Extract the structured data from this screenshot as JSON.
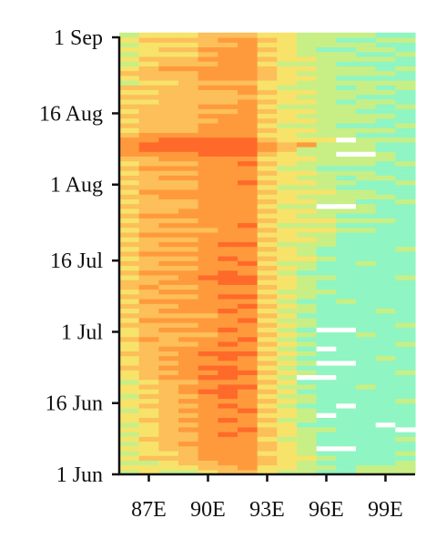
{
  "chart_data": {
    "type": "heatmap",
    "title": "",
    "xlabel": "",
    "ylabel": "",
    "x_ticks": [
      {
        "label": "87E",
        "value": 87
      },
      {
        "label": "90E",
        "value": 90
      },
      {
        "label": "93E",
        "value": 93
      },
      {
        "label": "96E",
        "value": 96
      },
      {
        "label": "99E",
        "value": 99
      }
    ],
    "y_ticks": [
      {
        "label": "1 Jun",
        "value": "2000-06-01"
      },
      {
        "label": "16 Jun",
        "value": "2000-06-16"
      },
      {
        "label": "1 Jul",
        "value": "2000-07-01"
      },
      {
        "label": "16 Jul",
        "value": "2000-07-16"
      },
      {
        "label": "1 Aug",
        "value": "2000-08-01"
      },
      {
        "label": "16 Aug",
        "value": "2000-08-16"
      },
      {
        "label": "1 Sep",
        "value": "2000-09-01"
      }
    ],
    "xlim": [
      85.5,
      100.5
    ],
    "ylim": [
      "2000-06-01",
      "2000-09-01"
    ],
    "grid": false,
    "legend": "none",
    "colormap": [
      "#8ff5c2",
      "#c7ef86",
      "#f7e36a",
      "#fcbf5a",
      "#ff9a3c",
      "#ff6a2a"
    ],
    "value_range": [
      0,
      5
    ],
    "missing_color": "#ffffff",
    "x_columns": [
      86,
      87,
      88,
      89,
      90,
      91,
      92,
      93,
      94,
      95,
      96,
      97,
      98,
      99,
      100
    ],
    "row_start_date": "2000-06-01",
    "row_step_days": 1,
    "rows": [
      [
        1,
        2,
        1,
        1,
        2,
        3,
        3,
        2,
        1,
        1,
        0,
        0,
        1,
        1,
        1
      ],
      [
        2,
        2,
        2,
        2,
        3,
        3,
        4,
        2,
        2,
        1,
        1,
        0,
        1,
        1,
        1
      ],
      [
        1,
        1,
        2,
        3,
        3,
        4,
        4,
        3,
        2,
        1,
        0,
        0,
        0,
        0,
        1
      ],
      [
        2,
        3,
        3,
        3,
        4,
        4,
        4,
        3,
        2,
        2,
        1,
        0,
        0,
        0,
        0
      ],
      [
        1,
        2,
        2,
        3,
        4,
        4,
        4,
        2,
        2,
        1,
        0,
        0,
        0,
        0,
        1
      ],
      [
        2,
        2,
        3,
        3,
        4,
        4,
        4,
        3,
        2,
        1,
        -1,
        -1,
        0,
        0,
        0
      ],
      [
        1,
        2,
        3,
        4,
        4,
        4,
        4,
        3,
        2,
        1,
        0,
        0,
        0,
        0,
        0
      ],
      [
        2,
        3,
        3,
        3,
        4,
        4,
        4,
        2,
        1,
        1,
        0,
        0,
        0,
        0,
        1
      ],
      [
        1,
        2,
        3,
        3,
        4,
        5,
        4,
        3,
        2,
        1,
        0,
        0,
        0,
        0,
        0
      ],
      [
        2,
        2,
        3,
        4,
        4,
        4,
        5,
        3,
        2,
        1,
        1,
        0,
        0,
        0,
        -1
      ],
      [
        1,
        2,
        3,
        3,
        4,
        4,
        4,
        2,
        2,
        0,
        0,
        0,
        0,
        -1,
        0
      ],
      [
        2,
        3,
        3,
        4,
        4,
        5,
        4,
        3,
        1,
        1,
        0,
        0,
        0,
        0,
        0
      ],
      [
        2,
        2,
        3,
        3,
        4,
        4,
        4,
        2,
        2,
        1,
        -1,
        0,
        0,
        0,
        0
      ],
      [
        1,
        2,
        3,
        4,
        4,
        4,
        5,
        3,
        2,
        1,
        0,
        0,
        0,
        0,
        0
      ],
      [
        2,
        3,
        3,
        3,
        4,
        5,
        4,
        2,
        1,
        0,
        0,
        -1,
        0,
        0,
        0
      ],
      [
        2,
        2,
        3,
        4,
        4,
        4,
        4,
        3,
        2,
        1,
        0,
        0,
        0,
        0,
        1
      ],
      [
        1,
        3,
        3,
        3,
        4,
        5,
        4,
        2,
        1,
        1,
        0,
        0,
        0,
        0,
        0
      ],
      [
        2,
        2,
        3,
        4,
        5,
        5,
        4,
        3,
        2,
        0,
        0,
        0,
        0,
        0,
        0
      ],
      [
        2,
        3,
        3,
        4,
        4,
        5,
        5,
        2,
        1,
        1,
        0,
        0,
        1,
        0,
        0
      ],
      [
        1,
        2,
        3,
        3,
        4,
        4,
        4,
        3,
        2,
        0,
        0,
        0,
        0,
        0,
        0
      ],
      [
        2,
        3,
        4,
        4,
        5,
        5,
        4,
        2,
        1,
        -1,
        -1,
        0,
        0,
        0,
        0
      ],
      [
        2,
        3,
        3,
        4,
        4,
        5,
        5,
        3,
        2,
        1,
        0,
        0,
        0,
        0,
        1
      ],
      [
        3,
        3,
        4,
        4,
        5,
        5,
        4,
        2,
        1,
        0,
        0,
        0,
        0,
        0,
        0
      ],
      [
        2,
        3,
        3,
        4,
        4,
        4,
        4,
        3,
        2,
        1,
        -1,
        -1,
        0,
        0,
        0
      ],
      [
        2,
        3,
        4,
        4,
        4,
        5,
        4,
        2,
        1,
        0,
        0,
        0,
        0,
        1,
        0
      ],
      [
        3,
        3,
        3,
        4,
        5,
        5,
        5,
        3,
        2,
        1,
        0,
        0,
        0,
        0,
        0
      ],
      [
        2,
        3,
        4,
        4,
        4,
        4,
        4,
        2,
        1,
        0,
        -1,
        0,
        0,
        0,
        0
      ],
      [
        2,
        3,
        3,
        3,
        4,
        5,
        4,
        3,
        2,
        1,
        0,
        0,
        0,
        0,
        1
      ],
      [
        3,
        4,
        3,
        4,
        4,
        4,
        5,
        2,
        1,
        0,
        0,
        0,
        0,
        0,
        0
      ],
      [
        2,
        3,
        3,
        3,
        3,
        4,
        4,
        3,
        2,
        1,
        0,
        0,
        1,
        0,
        0
      ],
      [
        2,
        3,
        4,
        4,
        4,
        5,
        4,
        2,
        1,
        0,
        -1,
        -1,
        0,
        0,
        0
      ],
      [
        3,
        3,
        3,
        3,
        4,
        4,
        4,
        3,
        2,
        1,
        0,
        0,
        0,
        0,
        1
      ],
      [
        2,
        4,
        4,
        4,
        4,
        4,
        5,
        2,
        1,
        1,
        0,
        0,
        0,
        0,
        0
      ],
      [
        3,
        3,
        3,
        3,
        3,
        4,
        4,
        3,
        2,
        0,
        0,
        0,
        0,
        0,
        0
      ],
      [
        2,
        3,
        4,
        4,
        4,
        5,
        4,
        2,
        1,
        1,
        0,
        0,
        0,
        1,
        0
      ],
      [
        3,
        3,
        3,
        4,
        4,
        4,
        5,
        3,
        2,
        1,
        0,
        0,
        0,
        0,
        0
      ],
      [
        2,
        4,
        4,
        4,
        4,
        4,
        4,
        2,
        1,
        0,
        0,
        1,
        0,
        0,
        0
      ],
      [
        3,
        3,
        3,
        3,
        4,
        5,
        5,
        3,
        2,
        1,
        0,
        0,
        0,
        0,
        0
      ],
      [
        2,
        3,
        4,
        4,
        4,
        4,
        4,
        2,
        1,
        1,
        1,
        0,
        0,
        0,
        0
      ],
      [
        3,
        4,
        3,
        3,
        4,
        4,
        4,
        3,
        2,
        1,
        0,
        0,
        0,
        0,
        0
      ],
      [
        3,
        3,
        4,
        4,
        4,
        5,
        5,
        2,
        2,
        1,
        0,
        0,
        0,
        0,
        0
      ],
      [
        2,
        3,
        3,
        4,
        5,
        5,
        5,
        3,
        2,
        1,
        1,
        0,
        0,
        0,
        1
      ],
      [
        3,
        4,
        4,
        4,
        4,
        5,
        4,
        2,
        1,
        0,
        0,
        0,
        0,
        0,
        0
      ],
      [
        2,
        3,
        3,
        3,
        4,
        4,
        4,
        3,
        2,
        1,
        0,
        0,
        0,
        0,
        0
      ],
      [
        3,
        3,
        4,
        4,
        4,
        4,
        5,
        2,
        1,
        1,
        0,
        0,
        1,
        0,
        0
      ],
      [
        2,
        3,
        3,
        3,
        4,
        5,
        4,
        3,
        2,
        2,
        1,
        0,
        0,
        0,
        0
      ],
      [
        3,
        4,
        4,
        4,
        4,
        4,
        4,
        2,
        2,
        1,
        0,
        0,
        0,
        0,
        0
      ],
      [
        2,
        3,
        3,
        3,
        4,
        4,
        4,
        3,
        2,
        1,
        0,
        0,
        0,
        0,
        1
      ],
      [
        3,
        3,
        4,
        4,
        4,
        5,
        5,
        2,
        1,
        1,
        1,
        0,
        0,
        0,
        0
      ],
      [
        2,
        3,
        3,
        3,
        4,
        4,
        4,
        3,
        2,
        2,
        1,
        0,
        0,
        0,
        0
      ],
      [
        3,
        4,
        4,
        4,
        4,
        4,
        4,
        2,
        2,
        1,
        1,
        0,
        0,
        0,
        0
      ],
      [
        2,
        3,
        3,
        3,
        3,
        4,
        4,
        3,
        2,
        2,
        2,
        1,
        1,
        0,
        0
      ],
      [
        3,
        3,
        4,
        4,
        4,
        4,
        5,
        2,
        1,
        1,
        1,
        0,
        0,
        0,
        0
      ],
      [
        2,
        3,
        3,
        3,
        4,
        4,
        4,
        3,
        2,
        2,
        2,
        1,
        1,
        1,
        0
      ],
      [
        3,
        4,
        4,
        4,
        4,
        4,
        4,
        2,
        2,
        1,
        1,
        0,
        0,
        0,
        0
      ],
      [
        2,
        3,
        3,
        4,
        4,
        4,
        4,
        3,
        2,
        2,
        1,
        1,
        1,
        0,
        0
      ],
      [
        3,
        3,
        3,
        3,
        4,
        4,
        4,
        2,
        1,
        1,
        -1,
        -1,
        1,
        0,
        0
      ],
      [
        2,
        3,
        3,
        3,
        4,
        4,
        4,
        3,
        2,
        2,
        1,
        1,
        0,
        0,
        1
      ],
      [
        3,
        3,
        4,
        4,
        4,
        4,
        4,
        2,
        2,
        1,
        1,
        1,
        1,
        1,
        0
      ],
      [
        2,
        4,
        4,
        4,
        4,
        4,
        4,
        3,
        2,
        2,
        2,
        1,
        1,
        0,
        0
      ],
      [
        3,
        3,
        3,
        3,
        4,
        4,
        4,
        2,
        1,
        1,
        1,
        0,
        0,
        0,
        0
      ],
      [
        2,
        3,
        3,
        3,
        4,
        4,
        5,
        3,
        2,
        2,
        1,
        1,
        0,
        0,
        1
      ],
      [
        3,
        3,
        4,
        4,
        4,
        4,
        4,
        2,
        2,
        1,
        1,
        0,
        1,
        1,
        0
      ],
      [
        2,
        3,
        3,
        3,
        4,
        4,
        4,
        3,
        2,
        2,
        1,
        1,
        1,
        0,
        0
      ],
      [
        3,
        4,
        4,
        4,
        4,
        4,
        4,
        2,
        1,
        1,
        0,
        0,
        0,
        0,
        0
      ],
      [
        2,
        3,
        3,
        3,
        4,
        4,
        5,
        3,
        2,
        1,
        1,
        1,
        1,
        0,
        1
      ],
      [
        3,
        3,
        4,
        4,
        4,
        4,
        4,
        2,
        2,
        2,
        1,
        1,
        1,
        1,
        0
      ],
      [
        4,
        4,
        4,
        4,
        5,
        5,
        5,
        3,
        2,
        1,
        1,
        -1,
        -1,
        1,
        0
      ],
      [
        4,
        5,
        5,
        5,
        5,
        5,
        5,
        4,
        3,
        1,
        1,
        1,
        1,
        0,
        0
      ],
      [
        4,
        5,
        5,
        5,
        5,
        5,
        5,
        4,
        3,
        4,
        1,
        1,
        1,
        0,
        0
      ],
      [
        4,
        4,
        5,
        5,
        5,
        5,
        5,
        3,
        2,
        2,
        2,
        -1,
        1,
        1,
        1
      ],
      [
        3,
        4,
        4,
        4,
        4,
        4,
        4,
        2,
        2,
        1,
        1,
        1,
        0,
        0,
        0
      ],
      [
        2,
        3,
        3,
        3,
        4,
        4,
        4,
        3,
        2,
        2,
        1,
        1,
        1,
        1,
        0
      ],
      [
        3,
        3,
        3,
        3,
        4,
        4,
        4,
        2,
        1,
        1,
        1,
        0,
        0,
        0,
        1
      ],
      [
        2,
        3,
        3,
        3,
        3,
        4,
        4,
        3,
        2,
        2,
        1,
        1,
        1,
        0,
        0
      ],
      [
        3,
        3,
        3,
        3,
        4,
        4,
        4,
        2,
        2,
        1,
        1,
        1,
        1,
        1,
        0
      ],
      [
        2,
        3,
        3,
        3,
        3,
        3,
        4,
        3,
        2,
        2,
        1,
        1,
        0,
        0,
        0
      ],
      [
        3,
        3,
        3,
        3,
        4,
        4,
        4,
        2,
        1,
        1,
        1,
        1,
        1,
        0,
        1
      ],
      [
        2,
        2,
        3,
        3,
        3,
        3,
        4,
        3,
        2,
        2,
        1,
        0,
        1,
        1,
        0
      ],
      [
        3,
        3,
        3,
        3,
        3,
        3,
        3,
        2,
        2,
        1,
        1,
        1,
        0,
        0,
        0
      ],
      [
        2,
        2,
        3,
        3,
        3,
        3,
        4,
        3,
        2,
        2,
        1,
        1,
        1,
        1,
        0
      ],
      [
        3,
        3,
        3,
        3,
        4,
        4,
        4,
        2,
        1,
        1,
        1,
        0,
        1,
        0,
        1
      ],
      [
        1,
        2,
        2,
        3,
        3,
        3,
        3,
        2,
        2,
        1,
        1,
        1,
        1,
        1,
        1
      ],
      [
        2,
        3,
        3,
        3,
        4,
        4,
        4,
        3,
        2,
        2,
        1,
        0,
        0,
        0,
        0
      ],
      [
        3,
        3,
        3,
        3,
        4,
        4,
        4,
        3,
        2,
        1,
        1,
        1,
        1,
        1,
        0
      ],
      [
        2,
        3,
        4,
        4,
        4,
        4,
        4,
        3,
        2,
        2,
        1,
        1,
        1,
        0,
        1
      ],
      [
        1,
        2,
        3,
        3,
        3,
        4,
        4,
        2,
        1,
        1,
        1,
        0,
        0,
        0,
        0
      ],
      [
        2,
        3,
        3,
        3,
        4,
        4,
        4,
        3,
        2,
        2,
        1,
        1,
        1,
        1,
        0
      ],
      [
        1,
        2,
        2,
        2,
        3,
        4,
        4,
        2,
        2,
        1,
        1,
        1,
        0,
        0,
        1
      ],
      [
        2,
        2,
        3,
        3,
        4,
        4,
        4,
        3,
        2,
        1,
        0,
        0,
        1,
        1,
        0
      ],
      [
        1,
        2,
        2,
        2,
        3,
        3,
        4,
        2,
        2,
        1,
        1,
        1,
        1,
        0,
        0
      ],
      [
        2,
        3,
        3,
        3,
        3,
        4,
        4,
        3,
        2,
        1,
        1,
        0,
        0,
        1,
        1
      ],
      [
        1,
        2,
        2,
        2,
        3,
        3,
        3,
        2,
        2,
        1,
        1,
        1,
        1,
        0,
        0
      ]
    ]
  }
}
